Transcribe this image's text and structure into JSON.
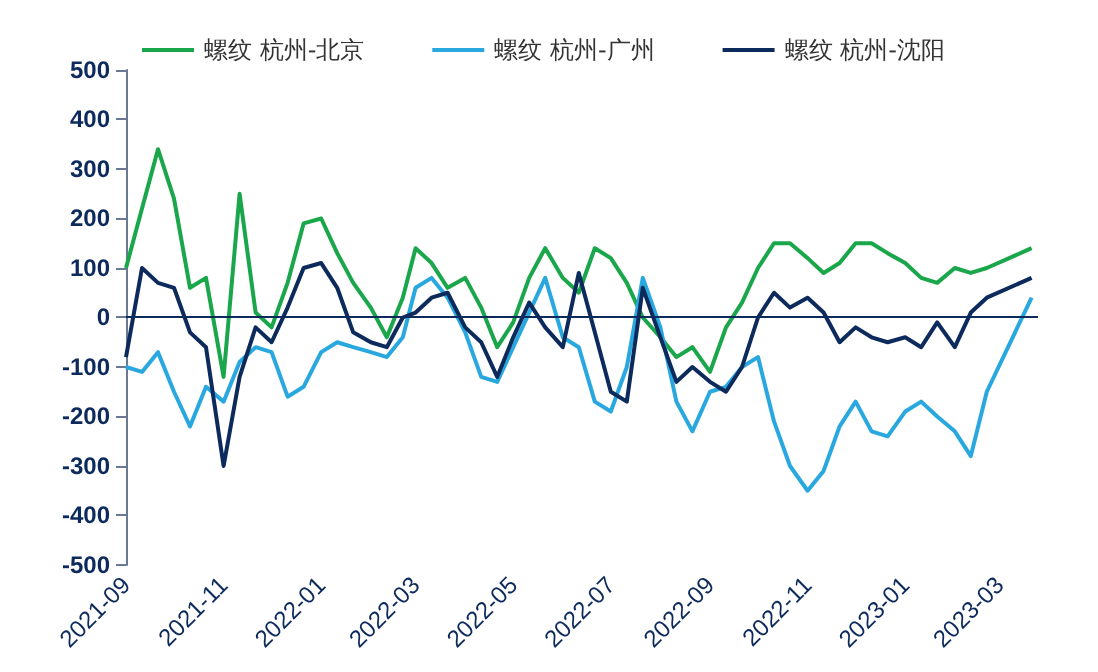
{
  "chart_data": {
    "type": "line",
    "x": [
      "2021-09-01",
      "2021-09-11",
      "2021-09-21",
      "2021-10-01",
      "2021-10-11",
      "2021-10-21",
      "2021-11-01",
      "2021-11-11",
      "2021-11-21",
      "2021-12-01",
      "2021-12-11",
      "2021-12-21",
      "2022-01-01",
      "2022-01-11",
      "2022-01-21",
      "2022-02-01",
      "2022-02-11",
      "2022-02-21",
      "2022-03-01",
      "2022-03-11",
      "2022-03-21",
      "2022-04-01",
      "2022-04-11",
      "2022-04-21",
      "2022-05-01",
      "2022-05-11",
      "2022-05-21",
      "2022-06-01",
      "2022-06-11",
      "2022-06-21",
      "2022-07-01",
      "2022-07-11",
      "2022-07-21",
      "2022-08-01",
      "2022-08-11",
      "2022-08-21",
      "2022-09-01",
      "2022-09-11",
      "2022-09-21",
      "2022-10-01",
      "2022-10-11",
      "2022-10-21",
      "2022-11-01",
      "2022-11-11",
      "2022-11-21",
      "2022-12-01",
      "2022-12-11",
      "2022-12-21",
      "2023-01-01",
      "2023-01-11",
      "2023-01-21",
      "2023-02-01",
      "2023-02-11",
      "2023-02-21",
      "2023-03-21"
    ],
    "series": [
      {
        "name": "螺纹 杭州-北京",
        "color": "#1aa64a",
        "values": [
          100,
          220,
          340,
          240,
          60,
          80,
          -120,
          250,
          10,
          -20,
          70,
          190,
          200,
          130,
          70,
          20,
          -40,
          40,
          140,
          110,
          60,
          80,
          20,
          -60,
          -10,
          80,
          140,
          80,
          50,
          140,
          120,
          70,
          0,
          -40,
          -80,
          -60,
          -110,
          -20,
          30,
          100,
          150,
          150,
          120,
          90,
          110,
          150,
          150,
          130,
          110,
          80,
          70,
          100,
          90,
          100,
          140
        ]
      },
      {
        "name": "螺纹 杭州-广州",
        "color": "#29a8e0",
        "values": [
          -100,
          -110,
          -70,
          -150,
          -220,
          -140,
          -170,
          -90,
          -60,
          -70,
          -160,
          -140,
          -70,
          -50,
          -60,
          -70,
          -80,
          -40,
          60,
          80,
          40,
          -30,
          -120,
          -130,
          -60,
          10,
          80,
          -40,
          -60,
          -170,
          -190,
          -100,
          80,
          -20,
          -170,
          -230,
          -150,
          -140,
          -100,
          -80,
          -210,
          -300,
          -350,
          -310,
          -220,
          -170,
          -230,
          -240,
          -190,
          -170,
          -200,
          -230,
          -280,
          -150,
          40
        ]
      },
      {
        "name": "螺纹 杭州-沈阳",
        "color": "#0d2a5c",
        "values": [
          -80,
          100,
          70,
          60,
          -30,
          -60,
          -300,
          -120,
          -20,
          -50,
          20,
          100,
          110,
          60,
          -30,
          -50,
          -60,
          0,
          10,
          40,
          50,
          -20,
          -50,
          -120,
          -40,
          30,
          -20,
          -60,
          90,
          -30,
          -150,
          -170,
          60,
          -40,
          -130,
          -100,
          -130,
          -150,
          -100,
          0,
          50,
          20,
          40,
          10,
          -50,
          -20,
          -40,
          -50,
          -40,
          -60,
          -10,
          -60,
          10,
          40,
          80
        ]
      }
    ],
    "xlim": [
      "2021-09-01",
      "2023-03-25"
    ],
    "xticks": [
      "2021-09",
      "2021-11",
      "2022-01",
      "2022-03",
      "2022-05",
      "2022-07",
      "2022-09",
      "2022-11",
      "2023-01",
      "2023-03"
    ],
    "ylim": [
      -500,
      500
    ],
    "yticks": [
      -500,
      -400,
      -300,
      -200,
      -100,
      0,
      100,
      200,
      300,
      400,
      500
    ],
    "ref_lines": [
      {
        "axis": "y",
        "value": 0,
        "color": "#0d2a5c"
      }
    ],
    "legend": "top",
    "grid": false,
    "marker": "none",
    "line_style": "solid"
  }
}
